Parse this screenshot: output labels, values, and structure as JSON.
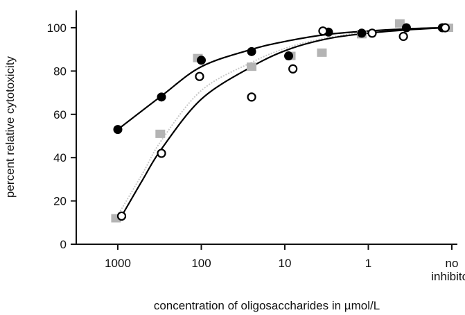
{
  "chart_data": {
    "type": "scatter",
    "title": "",
    "xlabel": "concentration of oligosaccharides in µmol/L",
    "ylabel": "percent relative cytotoxicity",
    "x_scale": "log",
    "x_reversed": true,
    "categories_note_free": true,
    "x_ticks": [
      {
        "value": 1000,
        "label": "1000"
      },
      {
        "value": 100,
        "label": "100"
      },
      {
        "value": 10,
        "label": "10"
      },
      {
        "value": 1,
        "label": "1"
      },
      {
        "value": 0.1,
        "label_lines": [
          "no",
          "inhibitor"
        ]
      }
    ],
    "y_ticks": [
      0,
      20,
      40,
      60,
      80,
      100
    ],
    "ylim": [
      0,
      100
    ],
    "grid": false,
    "legend": "none",
    "series": [
      {
        "marker": "filled-circle",
        "color": "#000000",
        "points": [
          {
            "x": 1000,
            "y": 53
          },
          {
            "x": 300,
            "y": 68
          },
          {
            "x": 100,
            "y": 85
          },
          {
            "x": 25,
            "y": 89
          },
          {
            "x": 9,
            "y": 87
          },
          {
            "x": 3,
            "y": 98
          },
          {
            "x": 1.2,
            "y": 97.5
          },
          {
            "x": 0.35,
            "y": 100
          },
          {
            "x": 0.13,
            "y": 100
          }
        ],
        "fit": [
          {
            "x": 1000,
            "y": 53
          },
          {
            "x": 300,
            "y": 68.5
          },
          {
            "x": 100,
            "y": 82
          },
          {
            "x": 25,
            "y": 90
          },
          {
            "x": 9,
            "y": 94
          },
          {
            "x": 3,
            "y": 97
          },
          {
            "x": 1,
            "y": 98.5
          },
          {
            "x": 0.35,
            "y": 99.5
          },
          {
            "x": 0.13,
            "y": 100
          }
        ]
      },
      {
        "marker": "open-circle",
        "color": "#000000",
        "points": [
          {
            "x": 900,
            "y": 13
          },
          {
            "x": 300,
            "y": 42
          },
          {
            "x": 105,
            "y": 77.5
          },
          {
            "x": 25,
            "y": 68
          },
          {
            "x": 8,
            "y": 81
          },
          {
            "x": 3.5,
            "y": 98.5
          },
          {
            "x": 0.9,
            "y": 97.5
          },
          {
            "x": 0.38,
            "y": 96
          },
          {
            "x": 0.12,
            "y": 100
          }
        ],
        "fit": [
          {
            "x": 900,
            "y": 13
          },
          {
            "x": 500,
            "y": 30
          },
          {
            "x": 300,
            "y": 44
          },
          {
            "x": 100,
            "y": 67
          },
          {
            "x": 25,
            "y": 82
          },
          {
            "x": 9,
            "y": 90
          },
          {
            "x": 3,
            "y": 95
          },
          {
            "x": 1,
            "y": 97.5
          },
          {
            "x": 0.35,
            "y": 99
          },
          {
            "x": 0.12,
            "y": 100
          }
        ]
      },
      {
        "marker": "gray-square",
        "color": "#b4b4b4",
        "points": [
          {
            "x": 1050,
            "y": 12
          },
          {
            "x": 310,
            "y": 51
          },
          {
            "x": 110,
            "y": 86
          },
          {
            "x": 25,
            "y": 82
          },
          {
            "x": 8.5,
            "y": 87
          },
          {
            "x": 3.6,
            "y": 88.5
          },
          {
            "x": 1.2,
            "y": 97
          },
          {
            "x": 0.42,
            "y": 102
          },
          {
            "x": 0.11,
            "y": 100
          }
        ],
        "fit": [
          {
            "x": 1050,
            "y": 12
          },
          {
            "x": 500,
            "y": 33
          },
          {
            "x": 300,
            "y": 48
          },
          {
            "x": 100,
            "y": 71
          },
          {
            "x": 25,
            "y": 84
          },
          {
            "x": 9,
            "y": 91
          },
          {
            "x": 3,
            "y": 95.5
          },
          {
            "x": 1,
            "y": 98
          },
          {
            "x": 0.35,
            "y": 99.5
          },
          {
            "x": 0.11,
            "y": 100
          }
        ]
      }
    ]
  }
}
